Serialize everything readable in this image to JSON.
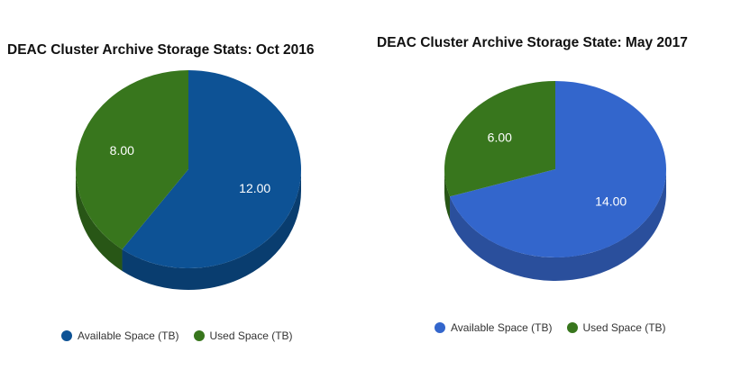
{
  "chart_data": [
    {
      "type": "pie",
      "title": "DEAC Cluster Archive Storage Stats: Oct 2016",
      "slices": [
        {
          "name": "Available Space (TB)",
          "value": 12.0,
          "label": "12.00",
          "color": "#0d5295",
          "side_color": "#093d6f"
        },
        {
          "name": "Used Space (TB)",
          "value": 8.0,
          "label": "8.00",
          "color": "#38761d",
          "side_color": "#285616"
        }
      ],
      "legend": "bottom"
    },
    {
      "type": "pie",
      "title": "DEAC Cluster Archive Storage State: May 2017",
      "slices": [
        {
          "name": "Available Space (TB)",
          "value": 14.0,
          "label": "14.00",
          "color": "#3366cc",
          "side_color": "#2a4f9c"
        },
        {
          "name": "Used Space (TB)",
          "value": 6.0,
          "label": "6.00",
          "color": "#38761d",
          "side_color": "#285616"
        }
      ],
      "legend": "bottom"
    }
  ]
}
